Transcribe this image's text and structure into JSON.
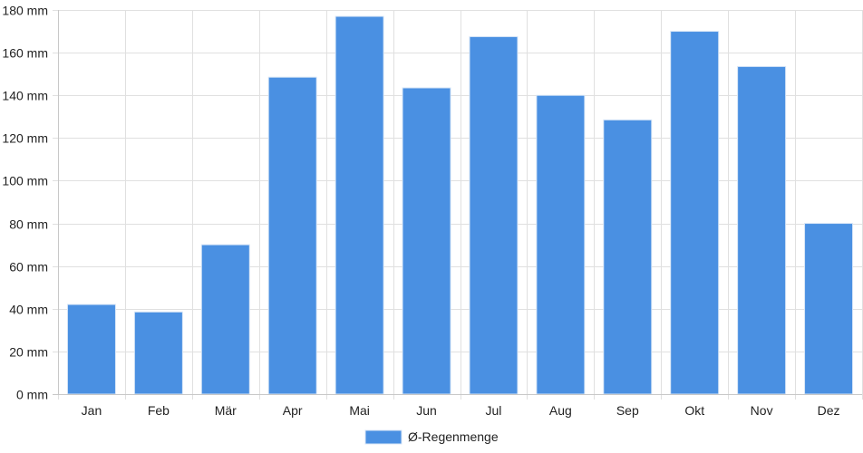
{
  "chart_data": {
    "type": "bar",
    "categories": [
      "Jan",
      "Feb",
      "Mär",
      "Apr",
      "Mai",
      "Jun",
      "Jul",
      "Aug",
      "Sep",
      "Okt",
      "Nov",
      "Dez"
    ],
    "series": [
      {
        "name": "Ø-Regenmenge",
        "values": [
          42,
          38.5,
          70,
          148.5,
          177,
          143.5,
          167.5,
          140,
          128.5,
          170,
          153.5,
          80
        ],
        "color": "#4a90e2"
      }
    ],
    "y_unit": "mm",
    "ylim": [
      0,
      180
    ],
    "y_ticks": [
      0,
      20,
      40,
      60,
      80,
      100,
      120,
      140,
      160,
      180
    ],
    "y_tick_labels": [
      "0 mm",
      "20 mm",
      "40 mm",
      "60 mm",
      "80 mm",
      "100 mm",
      "120 mm",
      "140 mm",
      "160 mm",
      "180 mm"
    ],
    "grid": true,
    "legend_position": "bottom-center",
    "colors": {
      "grid": "#e0e0e0",
      "axis": "#c8c8c8",
      "bar": "#4a90e2",
      "bar_border": "#d8e6f7"
    }
  }
}
